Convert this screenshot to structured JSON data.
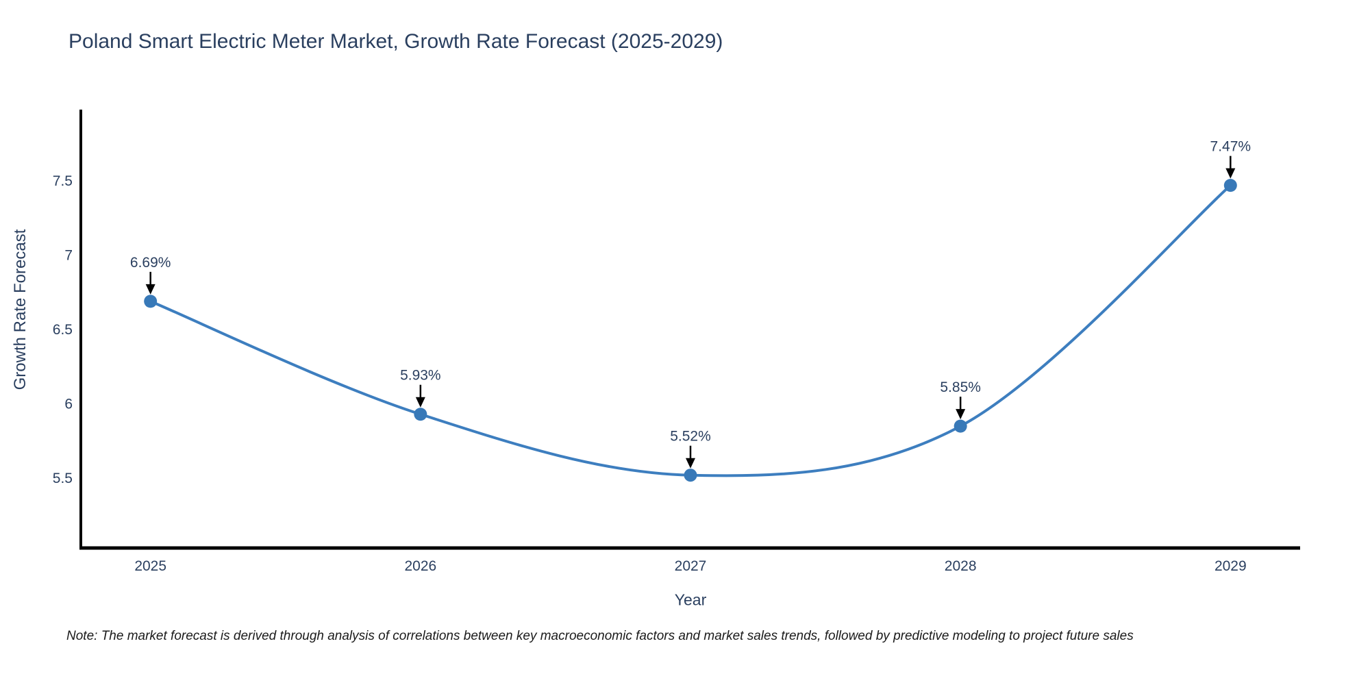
{
  "title": "Poland Smart Electric Meter Market, Growth Rate Forecast (2025-2029)",
  "note": "Note: The market forecast is derived through analysis of correlations between key macroeconomic factors and market sales trends, followed by predictive modeling to project future sales",
  "chart_data": {
    "type": "line",
    "title": "Poland Smart Electric Meter Market, Growth Rate Forecast (2025-2029)",
    "xlabel": "Year",
    "ylabel": "Growth Rate Forecast",
    "x": [
      2025,
      2026,
      2027,
      2028,
      2029
    ],
    "series": [
      {
        "name": "Growth Rate Forecast",
        "values": [
          6.69,
          5.93,
          5.52,
          5.85,
          7.47
        ]
      }
    ],
    "point_labels": [
      "6.69%",
      "5.93%",
      "5.52%",
      "5.85%",
      "7.47%"
    ],
    "xticks": [
      2025,
      2026,
      2027,
      2028,
      2029
    ],
    "yticks": [
      5.5,
      6,
      6.5,
      7,
      7.5
    ],
    "xlim": [
      2024.742,
      2029.258
    ],
    "ylim": [
      5.03,
      7.98
    ],
    "line_shape": "spline",
    "grid": false,
    "legend_position": "none",
    "line_color": "#3d7ebf",
    "marker_color": "#3879b8",
    "annotation_arrow_color": "#000000"
  },
  "colors": {
    "title_text": "#2a3f5f",
    "tick_labels": "#2a3f5f",
    "axis_titles": "#2a3f5f",
    "annotation_text": "#2a3f5f",
    "axis_line": "#000000",
    "note_text": "#1a1a1a"
  }
}
